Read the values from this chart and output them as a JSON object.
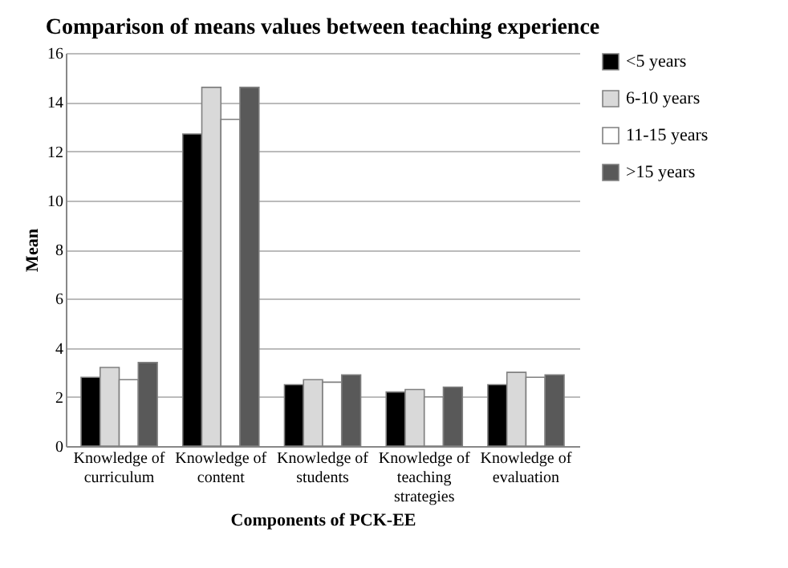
{
  "chart_data": {
    "type": "bar",
    "title": "Comparison of means values between teaching experience",
    "xlabel": "Components of PCK-EE",
    "ylabel": "Mean",
    "categories": [
      "Knowledge of curriculum",
      "Knowledge of content",
      "Knowledge of students",
      "Knowledge of teaching strategies",
      "Knowledge of evaluation"
    ],
    "series": [
      {
        "name": "<5 years",
        "color": "#000000",
        "values": [
          2.8,
          12.7,
          2.5,
          2.2,
          2.5
        ]
      },
      {
        "name": "6-10 years",
        "color": "#d9d9d9",
        "values": [
          3.2,
          14.6,
          2.7,
          2.3,
          3.0
        ]
      },
      {
        "name": "11-15 years",
        "color": "#ffffff",
        "values": [
          2.7,
          13.3,
          2.6,
          2.0,
          2.8
        ]
      },
      {
        "name": ">15 years",
        "color": "#595959",
        "values": [
          3.4,
          14.6,
          2.9,
          2.4,
          2.9
        ]
      }
    ],
    "ylim": [
      0,
      16
    ],
    "yticks": [
      0,
      2,
      4,
      6,
      8,
      10,
      12,
      14,
      16
    ],
    "grid": "y",
    "legend": "right"
  }
}
